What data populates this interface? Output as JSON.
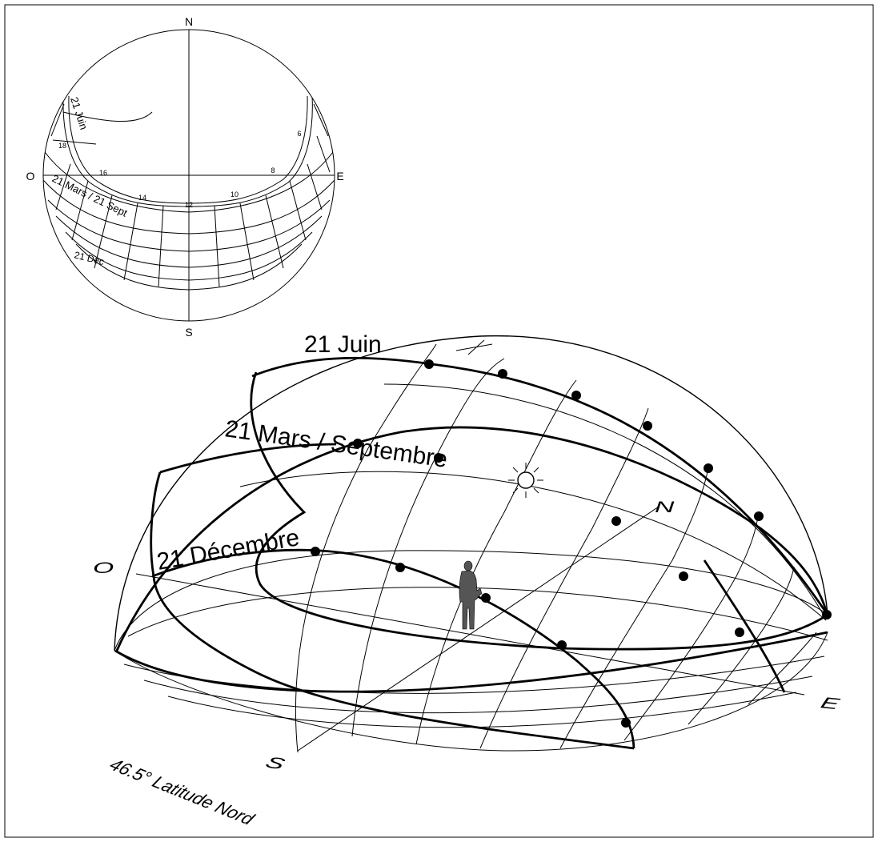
{
  "colors": {
    "line": "#000000",
    "background": "#ffffff",
    "figure": "#555555"
  },
  "stereo": {
    "north": "N",
    "south": "S",
    "west": "O",
    "east": "E",
    "path_june": "21 Juin",
    "path_equinox": "21 Mars / 21 Sept",
    "path_december": "21 Dec",
    "hours": [
      "6",
      "8",
      "10",
      "12",
      "14",
      "16",
      "18"
    ]
  },
  "dome": {
    "path_june": "21 Juin",
    "path_equinox": "21 Mars / Septembre",
    "path_december": "21 Décembre",
    "west": "O",
    "north": "N",
    "east": "E",
    "south": "S",
    "latitude": "46.5° Latitude Nord"
  },
  "icons": [
    "sun-icon",
    "person-figure"
  ]
}
